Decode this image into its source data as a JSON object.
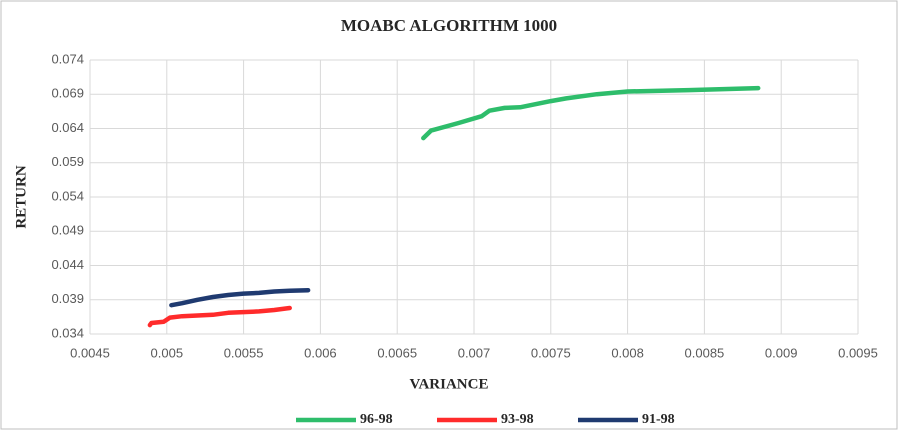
{
  "chart_data": {
    "type": "line",
    "title": "MOABC ALGORITHM 1000",
    "x_label": "VARIANCE",
    "y_label": "RETURN",
    "xlim": [
      0.0045,
      0.0095
    ],
    "xticks": [
      0.0045,
      0.005,
      0.0055,
      0.006,
      0.0065,
      0.007,
      0.0075,
      0.008,
      0.0085,
      0.009,
      0.0095
    ],
    "ylim": [
      0.034,
      0.074
    ],
    "yticks": [
      0.034,
      0.039,
      0.044,
      0.049,
      0.054,
      0.059,
      0.064,
      0.069,
      0.074
    ],
    "grid": true,
    "series": [
      {
        "name": "96-98",
        "color": "#2ebd6b",
        "x": [
          0.00667,
          0.00672,
          0.0069,
          0.00705,
          0.0071,
          0.0072,
          0.0073,
          0.0075,
          0.0076,
          0.0078,
          0.008,
          0.0084,
          0.00885
        ],
        "values": [
          0.0626,
          0.0637,
          0.0648,
          0.0658,
          0.0666,
          0.067,
          0.0671,
          0.068,
          0.0684,
          0.069,
          0.0694,
          0.0696,
          0.0699
        ]
      },
      {
        "name": "93-98",
        "color": "#ff2b2b",
        "x": [
          0.00489,
          0.0049,
          0.00498,
          0.00502,
          0.0051,
          0.0053,
          0.0054,
          0.0056,
          0.0057,
          0.0058
        ],
        "values": [
          0.0353,
          0.0356,
          0.0358,
          0.0364,
          0.0366,
          0.0368,
          0.0371,
          0.0373,
          0.0375,
          0.0378
        ]
      },
      {
        "name": "91-98",
        "color": "#1f3a70",
        "x": [
          0.00503,
          0.0051,
          0.0052,
          0.0053,
          0.0054,
          0.0055,
          0.0056,
          0.0057,
          0.0058,
          0.00592
        ],
        "values": [
          0.0382,
          0.0385,
          0.039,
          0.0394,
          0.0397,
          0.0399,
          0.04,
          0.0402,
          0.0403,
          0.0404
        ]
      }
    ]
  }
}
